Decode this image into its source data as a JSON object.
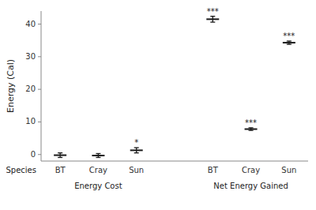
{
  "chart_data": {
    "type": "errorbar",
    "ylabel": "Energy (Cal)",
    "xlabel": "Species",
    "categories": [
      "BT",
      "Cray",
      "Sun",
      null,
      "BT",
      "Cray",
      "Sun"
    ],
    "values": [
      -0.2,
      -0.3,
      1.3,
      null,
      41.5,
      7.8,
      34.3
    ],
    "errors": [
      0.7,
      0.6,
      0.8,
      null,
      0.9,
      0.4,
      0.5
    ],
    "significance": [
      null,
      null,
      "*",
      null,
      "***",
      "***",
      "***"
    ],
    "annotations": [
      {
        "text": "Energy Cost"
      },
      {
        "text": "Net Energy Gained"
      }
    ],
    "color": "#1a1a1a",
    "ylim": [
      -2,
      44
    ],
    "yticks": [
      0,
      10,
      20,
      30,
      40
    ],
    "grid": false
  }
}
